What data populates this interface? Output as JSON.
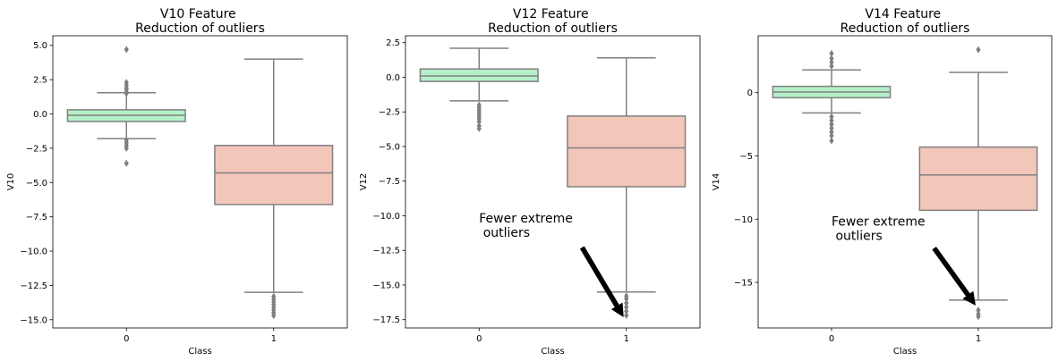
{
  "chart_data": [
    {
      "type": "box",
      "title": "V10 Feature \n Reduction of outliers",
      "xlabel": "Class",
      "ylabel": "V10",
      "categories": [
        "0",
        "1"
      ],
      "ylim": [
        -15.6,
        5.7
      ],
      "yticks": [
        5.0,
        2.5,
        0.0,
        -2.5,
        -5.0,
        -7.5,
        -10.0,
        -12.5,
        -15.0
      ],
      "ytick_labels": [
        "5.0",
        "2.5",
        "0.0",
        "−2.5",
        "−5.0",
        "−7.5",
        "−10.0",
        "−12.5",
        "−15.0"
      ],
      "box_colors": [
        "#b5f0c9",
        "#f3c6ba"
      ],
      "boxes": [
        {
          "category": "0",
          "whisker_low": -1.8,
          "q1": -0.55,
          "median": -0.1,
          "q3": 0.3,
          "whisker_high": 1.55,
          "outliers": [
            4.7,
            2.3,
            2.1,
            1.9,
            1.8,
            1.6,
            1.5,
            -1.9,
            -2.1,
            -2.3,
            -2.5,
            -3.6
          ]
        },
        {
          "category": "1",
          "whisker_low": -13.0,
          "q1": -6.6,
          "median": -4.3,
          "q3": -2.3,
          "whisker_high": 4.0,
          "outliers": [
            -13.3,
            -13.5,
            -13.7,
            -13.9,
            -14.1,
            -14.3,
            -14.5,
            -14.7
          ]
        }
      ],
      "annotation": null
    },
    {
      "type": "box",
      "title": "V12 Feature \n Reduction of outliers",
      "xlabel": "Class",
      "ylabel": "V12",
      "categories": [
        "0",
        "1"
      ],
      "ylim": [
        -18.1,
        3.0
      ],
      "yticks": [
        2.5,
        0.0,
        -2.5,
        -5.0,
        -7.5,
        -10.0,
        -12.5,
        -15.0,
        -17.5
      ],
      "ytick_labels": [
        "2.5",
        "0.0",
        "−2.5",
        "−5.0",
        "−7.5",
        "−10.0",
        "−12.5",
        "−15.0",
        "−17.5"
      ],
      "box_colors": [
        "#b5f0c9",
        "#f3c6ba"
      ],
      "boxes": [
        {
          "category": "0",
          "whisker_low": -1.7,
          "q1": -0.3,
          "median": 0.1,
          "q3": 0.6,
          "whisker_high": 2.1,
          "outliers": [
            -2.0,
            -2.2,
            -2.4,
            -2.6,
            -2.8,
            -3.0,
            -3.2,
            -3.5,
            -3.7
          ]
        },
        {
          "category": "1",
          "whisker_low": -15.5,
          "q1": -7.9,
          "median": -5.1,
          "q3": -2.8,
          "whisker_high": 1.4,
          "outliers": [
            -15.8,
            -16.0,
            -16.3,
            -16.6,
            -16.9,
            -17.2
          ]
        }
      ],
      "annotation": {
        "text_lines": [
          "Fewer extreme",
          " outliers"
        ],
        "text_xy": [
          0.0,
          -10.5
        ],
        "arrow_from": [
          0.7,
          -12.3
        ],
        "arrow_to": [
          0.98,
          -17.3
        ]
      }
    },
    {
      "type": "box",
      "title": "V14 Feature \n Reduction of outliers",
      "xlabel": "Class",
      "ylabel": "V14",
      "categories": [
        "0",
        "1"
      ],
      "ylim": [
        -18.6,
        4.5
      ],
      "yticks": [
        0,
        -5,
        -10,
        -15
      ],
      "ytick_labels": [
        "0",
        "−5",
        "−10",
        "−15"
      ],
      "box_colors": [
        "#b5f0c9",
        "#f3c6ba"
      ],
      "boxes": [
        {
          "category": "0",
          "whisker_low": -1.6,
          "q1": -0.4,
          "median": 0.05,
          "q3": 0.5,
          "whisker_high": 1.8,
          "outliers": [
            3.1,
            2.7,
            2.4,
            2.1,
            -1.9,
            -2.2,
            -2.5,
            -2.8,
            -3.1,
            -3.4,
            -3.8
          ]
        },
        {
          "category": "1",
          "whisker_low": -16.4,
          "q1": -9.3,
          "median": -6.5,
          "q3": -4.3,
          "whisker_high": 1.6,
          "outliers": [
            3.4,
            -17.2,
            -17.5,
            -17.7
          ]
        }
      ],
      "annotation": {
        "text_lines": [
          "Fewer extreme",
          " outliers"
        ],
        "text_xy": [
          0.0,
          -10.5
        ],
        "arrow_from": [
          0.7,
          -12.3
        ],
        "arrow_to": [
          0.98,
          -16.8
        ]
      }
    }
  ]
}
